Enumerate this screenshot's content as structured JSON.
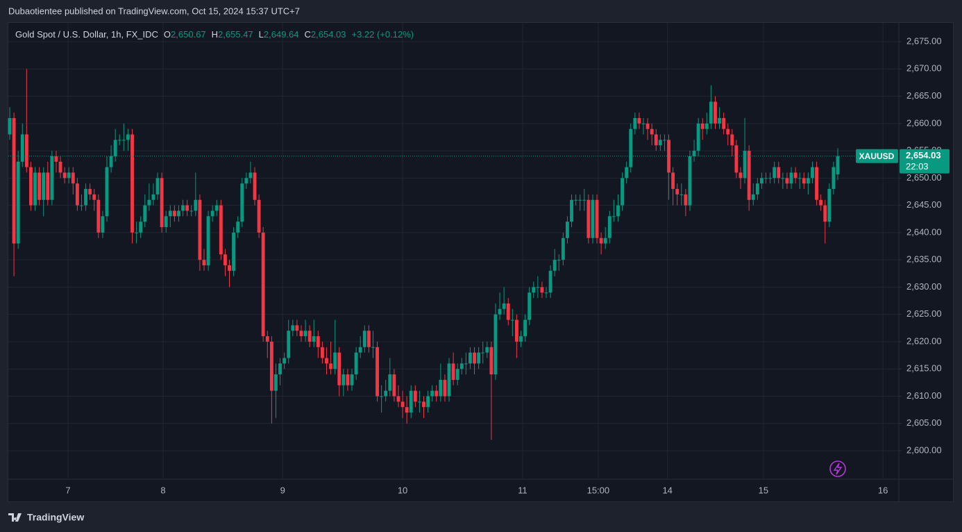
{
  "header": {
    "text": "Dubaotientee published on TradingView.com, Oct 15, 2024 15:37 UTC+7"
  },
  "footer": {
    "brand": "TradingView"
  },
  "chart_data": {
    "type": "candlestick",
    "legend": {
      "symbol": "Gold Spot / U.S. Dollar, 1h, FX_IDC",
      "o_label": "O",
      "o": "2,650.67",
      "h_label": "H",
      "h": "2,655.47",
      "l_label": "L",
      "l": "2,649.64",
      "c_label": "C",
      "c": "2,654.03",
      "change": "+3.22 (+0.12%)"
    },
    "last_price_label": {
      "symbol": "XAUUSD",
      "price": "2,654.03",
      "countdown": "22:03"
    },
    "up_color": "#089981",
    "down_color": "#f23645",
    "grid": true,
    "ylim": [
      2594.78,
      2678.44
    ],
    "yticks": [
      {
        "value": 2600,
        "label": "2,600.00"
      },
      {
        "value": 2605,
        "label": "2,605.00"
      },
      {
        "value": 2610,
        "label": "2,610.00"
      },
      {
        "value": 2615,
        "label": "2,615.00"
      },
      {
        "value": 2620,
        "label": "2,620.00"
      },
      {
        "value": 2625,
        "label": "2,625.00"
      },
      {
        "value": 2630,
        "label": "2,630.00"
      },
      {
        "value": 2635,
        "label": "2,635.00"
      },
      {
        "value": 2640,
        "label": "2,640.00"
      },
      {
        "value": 2645,
        "label": "2,645.00"
      },
      {
        "value": 2650,
        "label": "2,650.00"
      },
      {
        "value": 2655,
        "label": "2,655.00"
      },
      {
        "value": 2660,
        "label": "2,660.00"
      },
      {
        "value": 2665,
        "label": "2,665.00"
      },
      {
        "value": 2670,
        "label": "2,670.00"
      },
      {
        "value": 2675,
        "label": "2,675.00"
      }
    ],
    "xlim": [
      -0.33,
      210.46
    ],
    "xticks": [
      {
        "value": 13.8,
        "label": "7"
      },
      {
        "value": 36.3,
        "label": "8"
      },
      {
        "value": 64.6,
        "label": "9"
      },
      {
        "value": 93,
        "label": "10"
      },
      {
        "value": 121.4,
        "label": "11"
      },
      {
        "value": 139.3,
        "label": "15:00"
      },
      {
        "value": 155.7,
        "label": "14"
      },
      {
        "value": 178.4,
        "label": "15"
      },
      {
        "value": 206.7,
        "label": "16"
      }
    ],
    "open": [
      2658,
      2661,
      2638,
      2653,
      2658,
      2652,
      2645,
      2651,
      2646,
      2651,
      2646,
      2654,
      2653,
      2651,
      2650,
      2651,
      2649,
      2645,
      2645,
      2648,
      2647,
      2646,
      2640,
      2643,
      2652,
      2654,
      2657,
      2657,
      2657,
      2658,
      2640,
      2640,
      2642,
      2645,
      2646,
      2647,
      2650,
      2641,
      2643,
      2644,
      2643,
      2644,
      2645,
      2644,
      2644,
      2646,
      2635,
      2634,
      2643,
      2644,
      2645,
      2636,
      2634,
      2633,
      2640,
      2642,
      2649,
      2650,
      2651,
      2646,
      2640,
      2621,
      2620,
      2611,
      2614,
      2616,
      2617,
      2622,
      2623,
      2622,
      2621,
      2622,
      2620,
      2621,
      2619,
      2617,
      2616,
      2615,
      2618,
      2612,
      2614,
      2612,
      2614,
      2618,
      2619,
      2622,
      2619,
      2619,
      2610,
      2610,
      2611,
      2614,
      2610,
      2609,
      2608,
      2607,
      2611,
      2609,
      2609,
      2608,
      2610,
      2611,
      2610,
      2613,
      2610,
      2616,
      2613,
      2615,
      2616,
      2616,
      2618,
      2616,
      2618,
      2618,
      2619,
      2614,
      2625,
      2626,
      2627,
      2624,
      2624,
      2620,
      2621,
      2624,
      2629,
      2630,
      2630,
      2629,
      2629,
      2633,
      2635,
      2635,
      2639,
      2642,
      2646,
      2646,
      2646,
      2646,
      2639,
      2646,
      2639,
      2638,
      2639,
      2643,
      2643,
      2645,
      2650,
      2652,
      2659,
      2661,
      2660,
      2660,
      2659,
      2658,
      2656,
      2657,
      2657,
      2651,
      2648,
      2647,
      2647,
      2645,
      2654,
      2655,
      2660,
      2659,
      2660,
      2664,
      2660,
      2661,
      2659,
      2658,
      2656,
      2651,
      2650,
      2655,
      2646,
      2647,
      2649,
      2650,
      2650,
      2650,
      2652,
      2650,
      2650,
      2649,
      2651,
      2650,
      2650,
      2649,
      2650,
      2652,
      2646,
      2645,
      2642,
      2648,
      2650.67
    ],
    "high": [
      2663,
      2662,
      2655,
      2660,
      2670,
      2653,
      2652,
      2652,
      2652,
      2653,
      2655,
      2655,
      2654,
      2652,
      2652,
      2652,
      2650,
      2647,
      2649,
      2649,
      2648,
      2647,
      2644,
      2654,
      2656,
      2659,
      2658,
      2660,
      2659,
      2659,
      2642,
      2643,
      2647,
      2649,
      2649,
      2651,
      2651,
      2644,
      2645,
      2645,
      2645,
      2646,
      2646,
      2645,
      2651,
      2647,
      2637,
      2644,
      2645,
      2646,
      2646,
      2637,
      2635,
      2641,
      2643,
      2650,
      2651,
      2653,
      2652,
      2647,
      2641,
      2622,
      2621,
      2616,
      2617,
      2618,
      2624,
      2624,
      2624,
      2623,
      2624,
      2623,
      2624,
      2622,
      2620,
      2619,
      2620,
      2624,
      2619,
      2615,
      2615,
      2615,
      2619,
      2621,
      2623,
      2623,
      2622,
      2620,
      2612,
      2613,
      2617,
      2615,
      2612,
      2611,
      2610,
      2612,
      2612,
      2611,
      2610,
      2611,
      2612,
      2612,
      2616,
      2614,
      2617,
      2618,
      2616,
      2617,
      2618,
      2619,
      2619,
      2619,
      2620,
      2620,
      2620,
      2627,
      2629,
      2630,
      2628,
      2626,
      2625,
      2622,
      2625,
      2630,
      2631,
      2632,
      2631,
      2630,
      2634,
      2637,
      2636,
      2640,
      2643,
      2647,
      2647,
      2647,
      2648,
      2647,
      2647,
      2647,
      2640,
      2641,
      2644,
      2646,
      2647,
      2651,
      2653,
      2660,
      2662,
      2662,
      2661,
      2661,
      2660,
      2659,
      2658,
      2658,
      2658,
      2652,
      2649,
      2649,
      2648,
      2655,
      2657,
      2661,
      2661,
      2662,
      2667,
      2665,
      2663,
      2662,
      2660,
      2659,
      2657,
      2652,
      2661,
      2656,
      2649,
      2650,
      2651,
      2651,
      2651,
      2653,
      2653,
      2651,
      2651,
      2652,
      2652,
      2651,
      2651,
      2651,
      2653,
      2653,
      2647,
      2646,
      2649,
      2653,
      2655.47
    ],
    "low": [
      2657,
      2632,
      2637,
      2652,
      2651,
      2644,
      2644,
      2645,
      2643,
      2645,
      2645,
      2651,
      2650,
      2649,
      2649,
      2647,
      2644,
      2644,
      2644,
      2646,
      2644,
      2639,
      2639,
      2642,
      2651,
      2653,
      2656,
      2655,
      2655,
      2638,
      2638,
      2639,
      2641,
      2644,
      2645,
      2646,
      2640,
      2640,
      2641,
      2642,
      2642,
      2643,
      2643,
      2643,
      2643,
      2633,
      2633,
      2633,
      2642,
      2643,
      2635,
      2632,
      2630,
      2632,
      2639,
      2641,
      2648,
      2649,
      2645,
      2639,
      2620,
      2617,
      2605,
      2606,
      2612,
      2615,
      2616,
      2621,
      2621,
      2620,
      2620,
      2619,
      2619,
      2617,
      2616,
      2614,
      2614,
      2614,
      2610,
      2610,
      2611,
      2611,
      2613,
      2617,
      2618,
      2618,
      2617,
      2609,
      2607,
      2609,
      2610,
      2609,
      2608,
      2606,
      2605,
      2606,
      2608,
      2607,
      2606,
      2607,
      2609,
      2609,
      2609,
      2609,
      2609,
      2612,
      2612,
      2614,
      2614,
      2615,
      2614,
      2615,
      2616,
      2617,
      2602,
      2613,
      2624,
      2625,
      2623,
      2621,
      2617,
      2619,
      2620,
      2623,
      2628,
      2628,
      2628,
      2628,
      2628,
      2632,
      2633,
      2634,
      2638,
      2641,
      2645,
      2644,
      2644,
      2638,
      2638,
      2638,
      2636,
      2637,
      2638,
      2642,
      2642,
      2644,
      2649,
      2651,
      2658,
      2659,
      2658,
      2657,
      2656,
      2655,
      2655,
      2655,
      2646,
      2645,
      2645,
      2645,
      2643,
      2644,
      2653,
      2654,
      2657,
      2658,
      2659,
      2659,
      2659,
      2658,
      2656,
      2654,
      2650,
      2648,
      2649,
      2644,
      2645,
      2646,
      2648,
      2649,
      2649,
      2649,
      2649,
      2648,
      2648,
      2648,
      2649,
      2648,
      2648,
      2647,
      2649,
      2645,
      2644,
      2638,
      2641,
      2647,
      2649.64
    ],
    "close": [
      2661,
      2638,
      2653,
      2658,
      2652,
      2645,
      2651,
      2646,
      2651,
      2646,
      2654,
      2653,
      2651,
      2650,
      2651,
      2649,
      2645,
      2645,
      2648,
      2647,
      2646,
      2640,
      2643,
      2652,
      2654,
      2657,
      2657,
      2657,
      2658,
      2640,
      2640,
      2642,
      2645,
      2646,
      2647,
      2650,
      2641,
      2643,
      2644,
      2643,
      2644,
      2645,
      2644,
      2644,
      2646,
      2635,
      2634,
      2643,
      2644,
      2645,
      2636,
      2634,
      2633,
      2640,
      2642,
      2649,
      2650,
      2651,
      2646,
      2640,
      2621,
      2620,
      2611,
      2614,
      2616,
      2617,
      2622,
      2623,
      2622,
      2621,
      2622,
      2620,
      2621,
      2619,
      2617,
      2616,
      2615,
      2618,
      2612,
      2614,
      2612,
      2614,
      2618,
      2619,
      2622,
      2619,
      2619,
      2610,
      2610,
      2611,
      2614,
      2610,
      2609,
      2608,
      2607,
      2611,
      2609,
      2609,
      2608,
      2610,
      2611,
      2610,
      2613,
      2610,
      2616,
      2613,
      2615,
      2616,
      2616,
      2618,
      2616,
      2618,
      2618,
      2619,
      2614,
      2625,
      2626,
      2627,
      2624,
      2624,
      2620,
      2621,
      2624,
      2629,
      2630,
      2630,
      2629,
      2629,
      2633,
      2635,
      2635,
      2639,
      2642,
      2646,
      2646,
      2646,
      2646,
      2639,
      2646,
      2639,
      2638,
      2639,
      2643,
      2643,
      2645,
      2650,
      2652,
      2659,
      2661,
      2660,
      2660,
      2659,
      2658,
      2656,
      2657,
      2657,
      2651,
      2648,
      2647,
      2647,
      2645,
      2654,
      2655,
      2660,
      2659,
      2660,
      2664,
      2660,
      2661,
      2659,
      2658,
      2656,
      2651,
      2650,
      2655,
      2646,
      2647,
      2649,
      2650,
      2650,
      2650,
      2652,
      2650,
      2650,
      2649,
      2651,
      2650,
      2650,
      2649,
      2650,
      2652,
      2646,
      2645,
      2642,
      2648,
      2652,
      2654.03
    ]
  }
}
